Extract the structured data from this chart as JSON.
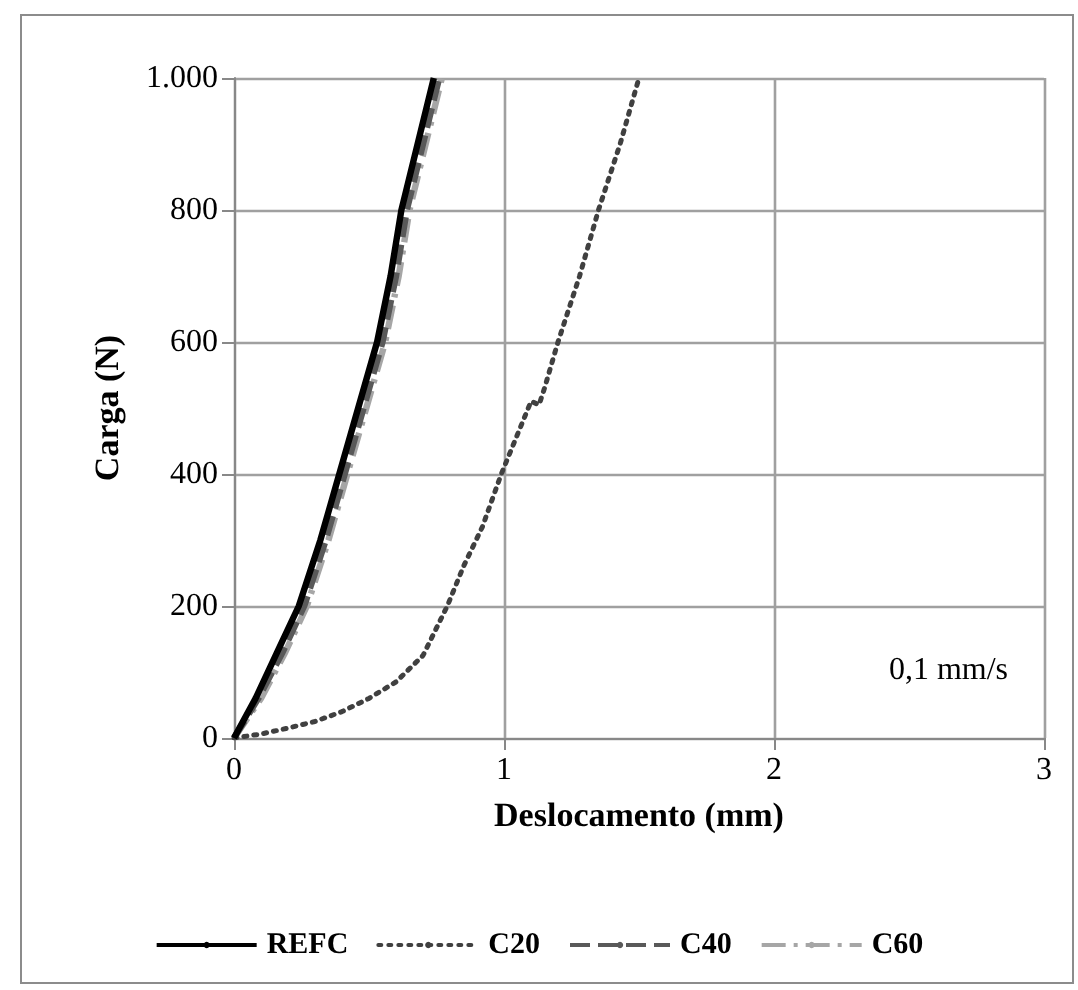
{
  "chart_data": {
    "type": "line",
    "xlabel": "Deslocamento (mm)",
    "ylabel": "Carga (N)",
    "annotations": [
      "0,1 mm/s"
    ],
    "xlim": [
      0,
      3
    ],
    "xticks": [
      0,
      1,
      2,
      3
    ],
    "ylim": [
      0,
      1000
    ],
    "yticks": [
      0,
      200,
      400,
      600,
      800,
      {
        "value": 1000,
        "label": "1.000"
      }
    ],
    "grid": true,
    "legend": "bottom",
    "marker": "none",
    "series": [
      {
        "name": "REFC",
        "color": "#000000",
        "line_style": "solid",
        "x": [
          0,
          0.08,
          0.16,
          0.24,
          0.32,
          0.39,
          0.46,
          0.53,
          0.58,
          0.62,
          0.68,
          0.74
        ],
        "values": [
          0,
          60,
          130,
          200,
          300,
          400,
          500,
          600,
          700,
          800,
          900,
          1000
        ]
      },
      {
        "name": "C20",
        "color": "#404040",
        "line_style": "dotted",
        "x": [
          0,
          0.1,
          0.2,
          0.3,
          0.4,
          0.5,
          0.6,
          0.7,
          0.79,
          0.85,
          0.92,
          0.99,
          1.05,
          1.1,
          1.13,
          1.15,
          1.2,
          1.28,
          1.35,
          1.43,
          1.5
        ],
        "values": [
          0,
          6,
          15,
          25,
          40,
          60,
          85,
          125,
          200,
          260,
          320,
          400,
          460,
          510,
          505,
          530,
          600,
          700,
          800,
          900,
          1000
        ]
      },
      {
        "name": "C40",
        "color": "#595959",
        "line_style": "dashed",
        "x": [
          0,
          0.09,
          0.18,
          0.26,
          0.34,
          0.41,
          0.48,
          0.55,
          0.6,
          0.64,
          0.7,
          0.76
        ],
        "values": [
          0,
          60,
          130,
          200,
          300,
          400,
          500,
          600,
          700,
          800,
          900,
          1000
        ]
      },
      {
        "name": "C60",
        "color": "#a6a6a6",
        "line_style": "dashdot",
        "x": [
          0,
          0.1,
          0.19,
          0.27,
          0.35,
          0.42,
          0.49,
          0.56,
          0.61,
          0.65,
          0.71,
          0.77
        ],
        "values": [
          0,
          60,
          130,
          200,
          300,
          400,
          500,
          600,
          700,
          800,
          900,
          1000
        ]
      }
    ]
  }
}
